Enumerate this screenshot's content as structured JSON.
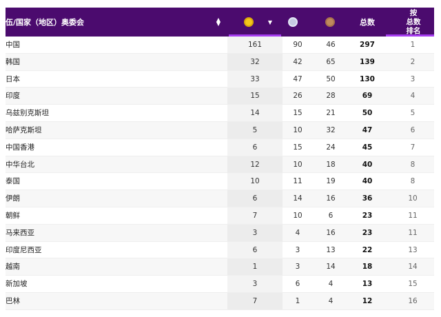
{
  "header": {
    "name_label": "伍/国家（地区）奥委会",
    "sort_icon": "sort-icon",
    "gold_icon": "gold-medal-icon",
    "silver_icon": "silver-medal-icon",
    "bronze_icon": "bronze-medal-icon",
    "total_label": "总数",
    "rank_label_1": "按",
    "rank_label_2": "总数",
    "rank_label_3": "排名"
  },
  "colors": {
    "header_bg": "#4b0b6e",
    "accent": "#a73df0"
  },
  "rows": [
    {
      "name": "中国",
      "gold": "161",
      "silver": "90",
      "bronze": "46",
      "total": "297",
      "rank": "1"
    },
    {
      "name": "韩国",
      "gold": "32",
      "silver": "42",
      "bronze": "65",
      "total": "139",
      "rank": "2"
    },
    {
      "name": "日本",
      "gold": "33",
      "silver": "47",
      "bronze": "50",
      "total": "130",
      "rank": "3"
    },
    {
      "name": "印度",
      "gold": "15",
      "silver": "26",
      "bronze": "28",
      "total": "69",
      "rank": "4"
    },
    {
      "name": "乌兹别克斯坦",
      "gold": "14",
      "silver": "15",
      "bronze": "21",
      "total": "50",
      "rank": "5"
    },
    {
      "name": "哈萨克斯坦",
      "gold": "5",
      "silver": "10",
      "bronze": "32",
      "total": "47",
      "rank": "6"
    },
    {
      "name": "中国香港",
      "gold": "6",
      "silver": "15",
      "bronze": "24",
      "total": "45",
      "rank": "7"
    },
    {
      "name": "中华台北",
      "gold": "12",
      "silver": "10",
      "bronze": "18",
      "total": "40",
      "rank": "8"
    },
    {
      "name": "泰国",
      "gold": "10",
      "silver": "11",
      "bronze": "19",
      "total": "40",
      "rank": "8"
    },
    {
      "name": "伊朗",
      "gold": "6",
      "silver": "14",
      "bronze": "16",
      "total": "36",
      "rank": "10"
    },
    {
      "name": "朝鲜",
      "gold": "7",
      "silver": "10",
      "bronze": "6",
      "total": "23",
      "rank": "11"
    },
    {
      "name": "马来西亚",
      "gold": "3",
      "silver": "4",
      "bronze": "16",
      "total": "23",
      "rank": "11"
    },
    {
      "name": "印度尼西亚",
      "gold": "6",
      "silver": "3",
      "bronze": "13",
      "total": "22",
      "rank": "13"
    },
    {
      "name": "越南",
      "gold": "1",
      "silver": "3",
      "bronze": "14",
      "total": "18",
      "rank": "14"
    },
    {
      "name": "新加坡",
      "gold": "3",
      "silver": "6",
      "bronze": "4",
      "total": "13",
      "rank": "15"
    },
    {
      "name": "巴林",
      "gold": "7",
      "silver": "1",
      "bronze": "4",
      "total": "12",
      "rank": "16"
    }
  ]
}
